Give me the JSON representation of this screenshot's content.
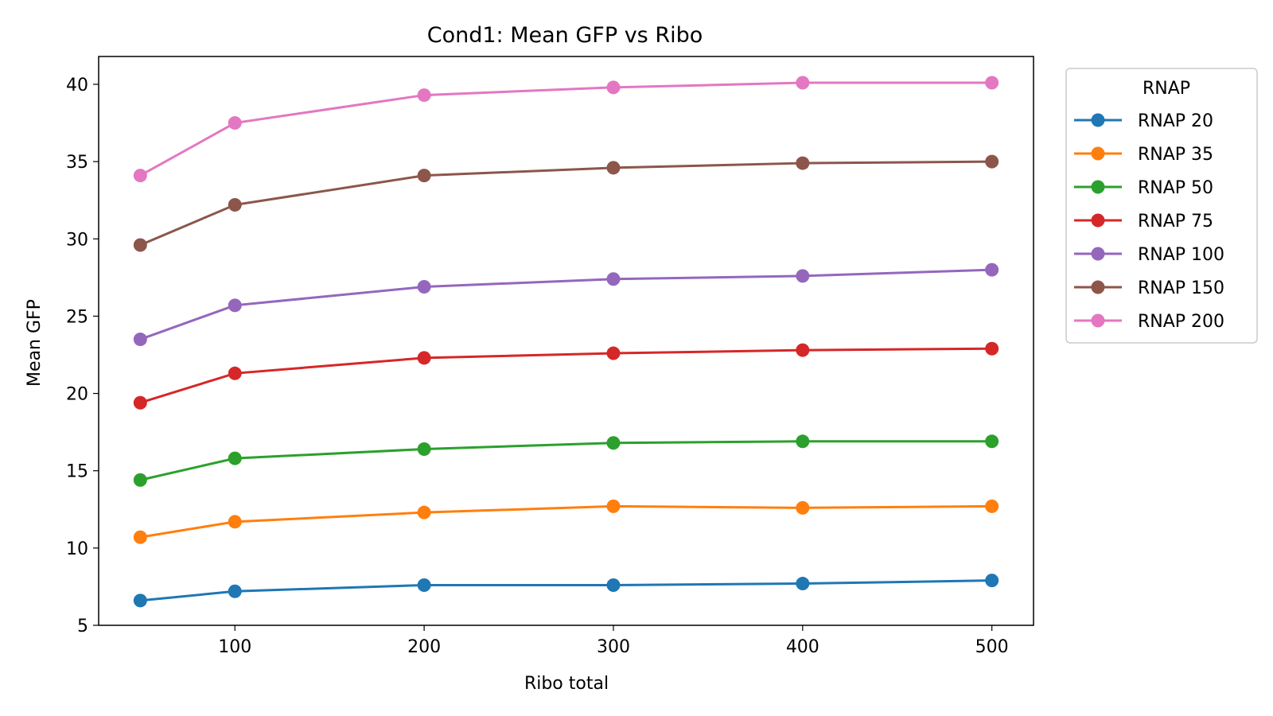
{
  "chart_data": {
    "type": "line",
    "title": "Cond1: Mean GFP vs Ribo",
    "xlabel": "Ribo total",
    "ylabel": "Mean GFP",
    "x": [
      50,
      100,
      200,
      300,
      400,
      500
    ],
    "xlim": [
      28,
      522
    ],
    "ylim": [
      5,
      41.8
    ],
    "xticks": [
      100,
      200,
      300,
      400,
      500
    ],
    "yticks": [
      5,
      10,
      15,
      20,
      25,
      30,
      35,
      40
    ],
    "grid": false,
    "legend": {
      "title": "RNAP",
      "placement": "outside right, top"
    },
    "series": [
      {
        "name": "RNAP 20",
        "color": "#1f77b4",
        "values": [
          6.6,
          7.2,
          7.6,
          7.6,
          7.7,
          7.9
        ]
      },
      {
        "name": "RNAP 35",
        "color": "#ff7f0e",
        "values": [
          10.7,
          11.7,
          12.3,
          12.7,
          12.6,
          12.7
        ]
      },
      {
        "name": "RNAP 50",
        "color": "#2ca02c",
        "values": [
          14.4,
          15.8,
          16.4,
          16.8,
          16.9,
          16.9
        ]
      },
      {
        "name": "RNAP 75",
        "color": "#d62728",
        "values": [
          19.4,
          21.3,
          22.3,
          22.6,
          22.8,
          22.9
        ]
      },
      {
        "name": "RNAP 100",
        "color": "#9467bd",
        "values": [
          23.5,
          25.7,
          26.9,
          27.4,
          27.6,
          28.0
        ]
      },
      {
        "name": "RNAP 150",
        "color": "#8c564b",
        "values": [
          29.6,
          32.2,
          34.1,
          34.6,
          34.9,
          35.0
        ]
      },
      {
        "name": "RNAP 200",
        "color": "#e377c2",
        "values": [
          34.1,
          37.5,
          39.3,
          39.8,
          40.1,
          40.1
        ]
      }
    ]
  }
}
